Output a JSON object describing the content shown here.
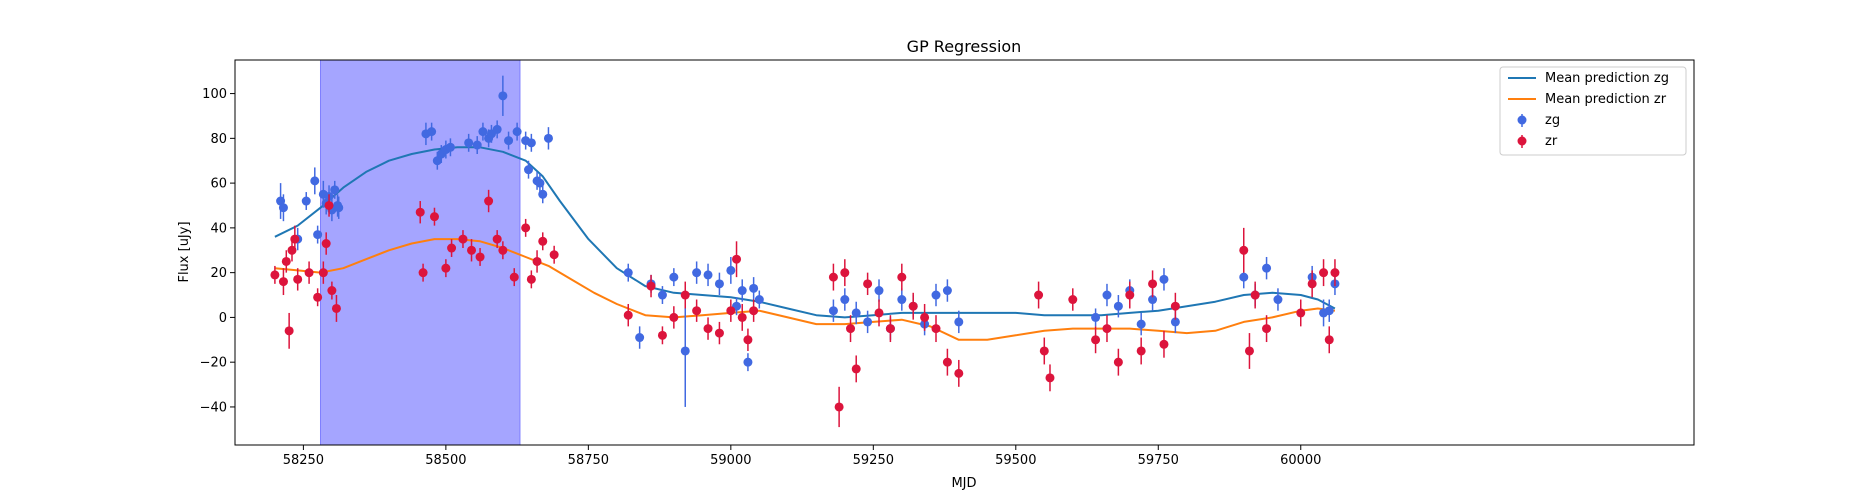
{
  "chart_data": {
    "type": "scatter",
    "title": "GP Regression",
    "xlabel": "MJD",
    "ylabel": "Flux [uJy]",
    "xlim": [
      58130,
      60690
    ],
    "ylim": [
      -57,
      115
    ],
    "xticks": [
      58250,
      58500,
      58750,
      59000,
      59250,
      59500,
      59750,
      60000
    ],
    "yticks": [
      -40,
      -20,
      0,
      20,
      40,
      60,
      80,
      100
    ],
    "legend_position": "top-right",
    "shaded_region": {
      "x": [
        58280,
        58630
      ],
      "color": "#a5a5ff"
    },
    "colors": {
      "zg_line": "#1f77b4",
      "zr_line": "#ff7f0e",
      "zg_points": "#4169e1",
      "zr_points": "#dc143c"
    },
    "series": [
      {
        "name": "Mean prediction zg",
        "kind": "line",
        "x": [
          58200,
          58240,
          58280,
          58320,
          58360,
          58400,
          58440,
          58480,
          58520,
          58560,
          58600,
          58640,
          58670,
          58700,
          58750,
          58800,
          58850,
          58900,
          58950,
          59000,
          59050,
          59100,
          59150,
          59200,
          59250,
          59300,
          59350,
          59400,
          59450,
          59500,
          59550,
          59600,
          59650,
          59700,
          59750,
          59800,
          59850,
          59900,
          59950,
          60000,
          60030,
          60060
        ],
        "y": [
          36,
          41,
          49,
          58,
          65,
          70,
          73,
          75,
          76,
          76,
          74,
          70,
          63,
          52,
          35,
          22,
          14,
          11,
          10,
          9,
          7,
          4,
          1,
          0,
          1,
          2,
          2,
          2,
          2,
          2,
          1,
          1,
          1,
          2,
          3,
          5,
          7,
          10,
          11,
          10,
          8,
          4
        ]
      },
      {
        "name": "Mean prediction zr",
        "kind": "line",
        "x": [
          58200,
          58240,
          58280,
          58320,
          58360,
          58400,
          58440,
          58480,
          58520,
          58560,
          58600,
          58640,
          58680,
          58720,
          58760,
          58800,
          58850,
          58900,
          58950,
          59000,
          59050,
          59100,
          59150,
          59200,
          59250,
          59300,
          59350,
          59400,
          59450,
          59500,
          59550,
          59600,
          59650,
          59700,
          59750,
          59800,
          59850,
          59900,
          59950,
          60000,
          60030,
          60060
        ],
        "y": [
          22,
          21,
          20,
          22,
          26,
          30,
          33,
          35,
          35,
          34,
          31,
          27,
          23,
          17,
          11,
          6,
          1,
          0,
          1,
          2,
          3,
          0,
          -3,
          -3,
          -2,
          -1,
          -4,
          -10,
          -10,
          -8,
          -6,
          -5,
          -5,
          -5,
          -6,
          -7,
          -6,
          -2,
          0,
          3,
          4,
          3
        ]
      },
      {
        "name": "zg",
        "kind": "errorbar",
        "x": [
          58210,
          58215,
          58240,
          58255,
          58270,
          58275,
          58285,
          58290,
          58295,
          58300,
          58305,
          58310,
          58312,
          58465,
          58475,
          58485,
          58492,
          58500,
          58508,
          58540,
          58555,
          58565,
          58575,
          58580,
          58590,
          58600,
          58610,
          58625,
          58640,
          58645,
          58650,
          58660,
          58665,
          58670,
          58680,
          58820,
          58840,
          58860,
          58880,
          58900,
          58920,
          58940,
          58960,
          58980,
          59000,
          59010,
          59020,
          59030,
          59040,
          59050,
          59180,
          59200,
          59220,
          59240,
          59260,
          59280,
          59300,
          59320,
          59340,
          59360,
          59380,
          59400,
          59640,
          59660,
          59680,
          59700,
          59720,
          59740,
          59760,
          59780,
          59900,
          59920,
          59940,
          59960,
          60020,
          60040,
          60050,
          60060
        ],
        "y": [
          52,
          49,
          35,
          52,
          61,
          37,
          55,
          51,
          54,
          48,
          57,
          50,
          49,
          82,
          83,
          70,
          73,
          75,
          76,
          78,
          77,
          83,
          80,
          82,
          84,
          99,
          79,
          83,
          79,
          66,
          78,
          61,
          60,
          55,
          80,
          20,
          -9,
          15,
          10,
          18,
          -15,
          20,
          19,
          15,
          21,
          5,
          12,
          -20,
          13,
          8,
          3,
          8,
          2,
          -2,
          12,
          -5,
          8,
          5,
          -3,
          10,
          12,
          -2,
          0,
          10,
          5,
          12,
          -3,
          8,
          17,
          -2,
          18,
          10,
          22,
          8,
          18,
          2,
          3,
          15
        ],
        "err": [
          8,
          6,
          5,
          4,
          6,
          4,
          6,
          5,
          5,
          5,
          4,
          5,
          5,
          5,
          4,
          4,
          4,
          4,
          4,
          4,
          4,
          4,
          4,
          4,
          4,
          9,
          4,
          4,
          4,
          4,
          4,
          4,
          4,
          4,
          5,
          4,
          5,
          4,
          4,
          4,
          25,
          5,
          5,
          5,
          6,
          4,
          5,
          4,
          5,
          4,
          5,
          5,
          5,
          5,
          5,
          5,
          5,
          5,
          5,
          5,
          5,
          5,
          4,
          5,
          5,
          5,
          5,
          5,
          5,
          5,
          5,
          5,
          5,
          5,
          5,
          6,
          5,
          5
        ]
      },
      {
        "name": "zr",
        "kind": "errorbar",
        "x": [
          58200,
          58215,
          58220,
          58225,
          58230,
          58235,
          58240,
          58260,
          58275,
          58285,
          58290,
          58295,
          58300,
          58308,
          58455,
          58460,
          58480,
          58500,
          58510,
          58530,
          58545,
          58560,
          58575,
          58590,
          58600,
          58620,
          58640,
          58650,
          58660,
          58670,
          58690,
          58820,
          58860,
          58880,
          58900,
          58920,
          58940,
          58960,
          58980,
          59000,
          59010,
          59020,
          59030,
          59040,
          59180,
          59190,
          59200,
          59210,
          59220,
          59240,
          59260,
          59280,
          59300,
          59320,
          59340,
          59360,
          59380,
          59400,
          59540,
          59550,
          59560,
          59600,
          59640,
          59660,
          59680,
          59700,
          59720,
          59740,
          59760,
          59780,
          59900,
          59910,
          59920,
          59940,
          60000,
          60020,
          60040,
          60050,
          60060
        ],
        "y": [
          19,
          16,
          25,
          -6,
          30,
          35,
          17,
          20,
          9,
          20,
          33,
          50,
          12,
          4,
          47,
          20,
          45,
          22,
          31,
          35,
          30,
          27,
          52,
          35,
          30,
          18,
          40,
          17,
          25,
          34,
          28,
          1,
          14,
          -8,
          0,
          10,
          3,
          -5,
          -7,
          3,
          26,
          0,
          -10,
          3,
          18,
          -40,
          20,
          -5,
          -23,
          15,
          2,
          -5,
          18,
          5,
          0,
          -5,
          -20,
          -25,
          10,
          -15,
          -27,
          8,
          -10,
          -5,
          -20,
          10,
          -15,
          15,
          -12,
          5,
          30,
          -15,
          10,
          -5,
          2,
          15,
          20,
          -10,
          20
        ],
        "err": [
          4,
          6,
          5,
          8,
          5,
          6,
          5,
          5,
          4,
          5,
          5,
          5,
          4,
          6,
          5,
          4,
          4,
          4,
          4,
          4,
          5,
          4,
          5,
          4,
          4,
          4,
          4,
          4,
          5,
          4,
          4,
          5,
          5,
          4,
          5,
          6,
          5,
          5,
          5,
          5,
          8,
          6,
          5,
          5,
          6,
          9,
          6,
          6,
          6,
          5,
          6,
          6,
          6,
          6,
          6,
          6,
          6,
          6,
          6,
          6,
          6,
          5,
          6,
          6,
          6,
          6,
          6,
          6,
          6,
          6,
          10,
          8,
          6,
          6,
          6,
          6,
          6,
          6,
          6
        ]
      }
    ]
  }
}
